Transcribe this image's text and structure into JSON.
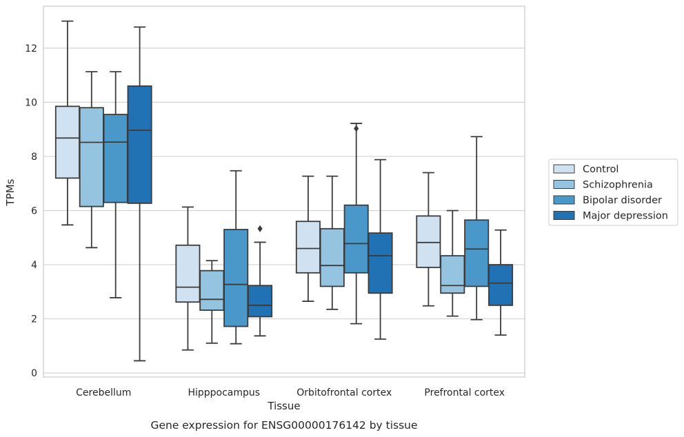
{
  "chart_data": {
    "type": "box",
    "caption": "Gene expression for ENSG00000176142 by tissue",
    "xlabel": "Tissue",
    "ylabel": "TPMs",
    "ylim": [
      -0.15,
      13.55
    ],
    "yticks": [
      0,
      2,
      4,
      6,
      8,
      10,
      12
    ],
    "grid": "horizontal",
    "legend_position": "right",
    "categories": [
      "Cerebellum",
      "Hipppocampus",
      "Orbitofrontal cortex",
      "Prefrontal cortex"
    ],
    "series": [
      {
        "name": "Control",
        "color": "#d0e1f2",
        "boxes": [
          {
            "whislo": 5.47,
            "q1": 7.2,
            "med": 8.68,
            "q3": 9.85,
            "whishi": 13.0,
            "fliers": []
          },
          {
            "whislo": 0.85,
            "q1": 2.62,
            "med": 3.17,
            "q3": 4.72,
            "whishi": 6.13,
            "fliers": []
          },
          {
            "whislo": 2.65,
            "q1": 3.7,
            "med": 4.6,
            "q3": 5.6,
            "whishi": 7.27,
            "fliers": []
          },
          {
            "whislo": 2.48,
            "q1": 3.9,
            "med": 4.82,
            "q3": 5.8,
            "whishi": 7.4,
            "fliers": []
          }
        ]
      },
      {
        "name": "Schizophrenia",
        "color": "#94c4df",
        "boxes": [
          {
            "whislo": 4.63,
            "q1": 6.15,
            "med": 8.52,
            "q3": 9.8,
            "whishi": 11.13,
            "fliers": []
          },
          {
            "whislo": 1.1,
            "q1": 2.32,
            "med": 2.72,
            "q3": 3.78,
            "whishi": 4.15,
            "fliers": []
          },
          {
            "whislo": 2.35,
            "q1": 3.2,
            "med": 3.97,
            "q3": 5.33,
            "whishi": 7.27,
            "fliers": []
          },
          {
            "whislo": 2.1,
            "q1": 2.95,
            "med": 3.23,
            "q3": 4.33,
            "whishi": 6.0,
            "fliers": []
          }
        ]
      },
      {
        "name": "Bipolar disorder",
        "color": "#4a98c9",
        "boxes": [
          {
            "whislo": 2.78,
            "q1": 6.3,
            "med": 8.53,
            "q3": 9.55,
            "whishi": 11.13,
            "fliers": []
          },
          {
            "whislo": 1.08,
            "q1": 1.72,
            "med": 3.27,
            "q3": 5.3,
            "whishi": 7.47,
            "fliers": []
          },
          {
            "whislo": 1.82,
            "q1": 3.7,
            "med": 4.78,
            "q3": 6.2,
            "whishi": 9.22,
            "fliers": [
              9.03
            ]
          },
          {
            "whislo": 1.97,
            "q1": 3.2,
            "med": 4.58,
            "q3": 5.65,
            "whishi": 8.73,
            "fliers": []
          }
        ]
      },
      {
        "name": "Major depression",
        "color": "#2171b5",
        "boxes": [
          {
            "whislo": 0.45,
            "q1": 6.27,
            "med": 8.97,
            "q3": 10.6,
            "whishi": 12.78,
            "fliers": []
          },
          {
            "whislo": 1.37,
            "q1": 2.08,
            "med": 2.5,
            "q3": 3.23,
            "whishi": 4.83,
            "fliers": [
              5.33
            ]
          },
          {
            "whislo": 1.25,
            "q1": 2.95,
            "med": 4.33,
            "q3": 5.17,
            "whishi": 7.88,
            "fliers": []
          },
          {
            "whislo": 1.4,
            "q1": 2.5,
            "med": 3.32,
            "q3": 4.0,
            "whishi": 5.28,
            "fliers": []
          }
        ]
      }
    ]
  }
}
